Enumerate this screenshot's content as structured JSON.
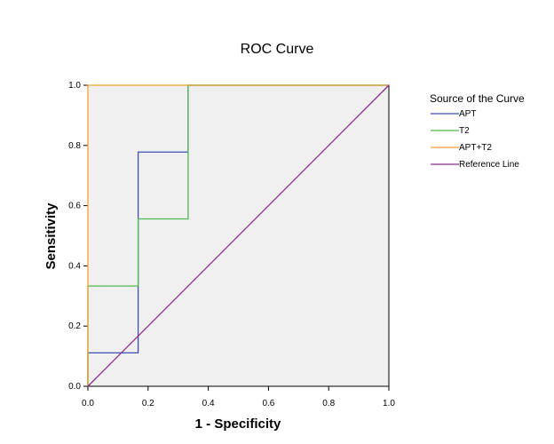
{
  "chart_data": {
    "type": "line",
    "title": "ROC Curve",
    "xlabel": "1 - Specificity",
    "ylabel": "Sensitivity",
    "xlim": [
      0,
      1
    ],
    "ylim": [
      0,
      1
    ],
    "x_ticks": [
      "0.0",
      "0.2",
      "0.4",
      "0.6",
      "0.8",
      "1.0"
    ],
    "y_ticks": [
      "0.0",
      "0.2",
      "0.4",
      "0.6",
      "0.8",
      "1.0"
    ],
    "grid": false,
    "plot_background": "#f0f0f0",
    "legend": {
      "title": "Source of the Curve",
      "placement": "right"
    },
    "series": [
      {
        "name": "APT",
        "color": "#3f4fb8",
        "x": [
          0,
          0,
          0.167,
          0.167,
          0.333,
          0.333,
          1
        ],
        "y": [
          0,
          0.111,
          0.111,
          0.778,
          0.778,
          1,
          1
        ]
      },
      {
        "name": "T2",
        "color": "#4fba4f",
        "x": [
          0,
          0,
          0.167,
          0.167,
          0.333,
          0.333,
          1
        ],
        "y": [
          0,
          0.333,
          0.333,
          0.556,
          0.556,
          1,
          1
        ]
      },
      {
        "name": "APT+T2",
        "color": "#f0a030",
        "x": [
          0,
          0,
          1
        ],
        "y": [
          0,
          1,
          1
        ]
      },
      {
        "name": "Reference Line",
        "color": "#8b2c8b",
        "x": [
          0,
          1
        ],
        "y": [
          0,
          1
        ]
      }
    ]
  }
}
